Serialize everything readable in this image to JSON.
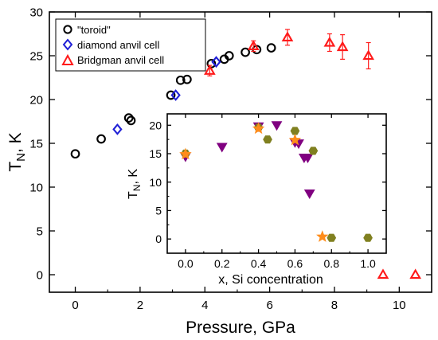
{
  "chart_data": [
    {
      "type": "scatter",
      "xlabel": "Pressure, GPa",
      "ylabel_main": "T",
      "ylabel_sub": "N",
      "ylabel_rest": ", K",
      "xlim": [
        -0.8,
        11.0
      ],
      "ylim": [
        -2.0,
        30.0
      ],
      "xticks": [
        0,
        2,
        4,
        6,
        8,
        10
      ],
      "yticks": [
        0,
        5,
        10,
        15,
        20,
        25,
        30
      ],
      "grid": false,
      "legend_position": "top-left",
      "series": [
        {
          "name": "\"toroid\"",
          "marker": "circle",
          "color": "#000000",
          "points": [
            [
              0.0,
              13.8
            ],
            [
              0.8,
              15.5
            ],
            [
              1.65,
              17.9
            ],
            [
              1.72,
              17.6
            ],
            [
              2.95,
              20.5
            ],
            [
              3.25,
              22.2
            ],
            [
              3.45,
              22.3
            ],
            [
              4.2,
              24.1
            ],
            [
              4.6,
              24.6
            ],
            [
              4.75,
              25.0
            ],
            [
              5.25,
              25.4
            ],
            [
              5.6,
              25.7
            ],
            [
              6.05,
              25.9
            ]
          ]
        },
        {
          "name": "diamond anvil cell",
          "marker": "diamond",
          "color": "#1f1fd6",
          "points": [
            [
              1.3,
              16.6
            ],
            [
              3.1,
              20.5
            ],
            [
              4.35,
              24.3
            ]
          ]
        },
        {
          "name": "Bridgman anvil cell",
          "marker": "triangle-up",
          "color": "#ff1a1a",
          "points": [
            [
              4.15,
              23.3,
              0.6
            ],
            [
              5.5,
              26.1,
              0.6
            ],
            [
              6.55,
              27.1,
              0.9
            ],
            [
              7.85,
              26.5,
              1.0
            ],
            [
              8.25,
              26.0,
              1.4
            ],
            [
              9.05,
              25.0,
              1.5
            ],
            [
              9.5,
              0.0,
              0
            ],
            [
              10.5,
              0.0,
              0
            ]
          ]
        }
      ]
    },
    {
      "type": "scatter",
      "xlabel": "x, Si concentration",
      "ylabel_main": "T",
      "ylabel_sub": "N",
      "ylabel_rest": ", K",
      "xlim": [
        -0.1,
        1.1
      ],
      "ylim": [
        -2.5,
        22.0
      ],
      "xticks": [
        0.0,
        0.2,
        0.4,
        0.6,
        0.8,
        1.0
      ],
      "xtick_labels": [
        "0.0",
        "0.2",
        "0.4",
        "0.6",
        "0.8",
        "1.0"
      ],
      "yticks": [
        0,
        5,
        10,
        15,
        20
      ],
      "grid": false,
      "series": [
        {
          "marker": "triangle-down",
          "color": "#800080",
          "points": [
            [
              0.0,
              14.5
            ],
            [
              0.2,
              16.2
            ],
            [
              0.4,
              19.8
            ],
            [
              0.5,
              20.0
            ],
            [
              0.6,
              17.0
            ],
            [
              0.62,
              16.8
            ],
            [
              0.65,
              14.3
            ],
            [
              0.67,
              14.3
            ],
            [
              0.68,
              8.0
            ]
          ]
        },
        {
          "marker": "hexagon",
          "color": "#808020",
          "points": [
            [
              0.0,
              15.0
            ],
            [
              0.4,
              19.6
            ],
            [
              0.45,
              17.5
            ],
            [
              0.6,
              19.0
            ],
            [
              0.7,
              15.5
            ],
            [
              0.8,
              0.2
            ],
            [
              1.0,
              0.2
            ]
          ]
        },
        {
          "marker": "star",
          "color": "#ff8c1a",
          "points": [
            [
              0.0,
              14.9
            ],
            [
              0.4,
              19.4
            ],
            [
              0.6,
              17.4
            ],
            [
              0.75,
              0.4
            ]
          ]
        }
      ]
    }
  ]
}
